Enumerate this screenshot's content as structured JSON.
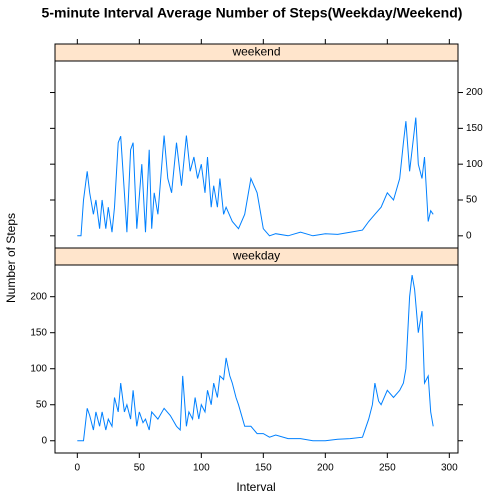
{
  "chart_data": {
    "type": "line",
    "title": "5-minute Interval Average Number of Steps(Weekday/Weekend)",
    "x_label": "Interval",
    "y_label": "Number of Steps",
    "xlim": [
      -18,
      307
    ],
    "xticks": [
      0,
      50,
      100,
      150,
      200,
      250,
      300
    ],
    "ylim": [
      -17,
      244
    ],
    "yticks": [
      0,
      50,
      100,
      150,
      200
    ],
    "series": [
      {
        "name": "weekend",
        "color": "#0080ff",
        "x": [
          0,
          3,
          5,
          8,
          10,
          13,
          15,
          18,
          20,
          23,
          25,
          28,
          30,
          33,
          35,
          38,
          40,
          43,
          45,
          48,
          52,
          55,
          58,
          60,
          62,
          65,
          70,
          73,
          76,
          80,
          84,
          88,
          91,
          94,
          97,
          100,
          103,
          105,
          108,
          110,
          113,
          115,
          118,
          120,
          125,
          130,
          135,
          140,
          145,
          150,
          155,
          160,
          170,
          180,
          190,
          200,
          210,
          220,
          230,
          235,
          240,
          245,
          250,
          255,
          260,
          263,
          265,
          268,
          270,
          273,
          275,
          278,
          280,
          283,
          285,
          287
        ],
        "values": [
          0,
          0,
          50,
          90,
          60,
          30,
          50,
          10,
          50,
          10,
          40,
          5,
          40,
          130,
          139,
          60,
          5,
          120,
          130,
          10,
          100,
          5,
          120,
          10,
          60,
          30,
          140,
          80,
          60,
          130,
          70,
          140,
          90,
          110,
          80,
          100,
          60,
          110,
          40,
          70,
          40,
          80,
          30,
          40,
          20,
          10,
          30,
          80,
          60,
          10,
          0,
          3,
          0,
          5,
          0,
          3,
          2,
          5,
          8,
          20,
          30,
          40,
          60,
          50,
          80,
          130,
          160,
          90,
          120,
          165,
          100,
          80,
          110,
          20,
          35,
          30
        ]
      },
      {
        "name": "weekday",
        "color": "#0080ff",
        "x": [
          0,
          5,
          8,
          10,
          13,
          15,
          18,
          20,
          23,
          25,
          28,
          30,
          33,
          35,
          38,
          40,
          43,
          45,
          48,
          50,
          53,
          55,
          58,
          60,
          65,
          70,
          75,
          80,
          83,
          85,
          88,
          90,
          93,
          95,
          98,
          100,
          103,
          105,
          108,
          110,
          113,
          115,
          118,
          120,
          123,
          125,
          128,
          130,
          135,
          140,
          145,
          150,
          155,
          160,
          170,
          180,
          190,
          200,
          210,
          220,
          230,
          233,
          235,
          238,
          240,
          243,
          245,
          250,
          255,
          260,
          263,
          265,
          268,
          270,
          272,
          275,
          278,
          280,
          283,
          285,
          287
        ],
        "values": [
          0,
          0,
          45,
          35,
          15,
          40,
          20,
          40,
          15,
          30,
          20,
          60,
          40,
          80,
          40,
          50,
          30,
          70,
          20,
          40,
          25,
          30,
          15,
          40,
          30,
          45,
          35,
          20,
          15,
          90,
          20,
          40,
          30,
          60,
          30,
          50,
          40,
          70,
          50,
          80,
          60,
          90,
          85,
          115,
          90,
          80,
          60,
          50,
          20,
          20,
          10,
          10,
          5,
          8,
          3,
          3,
          0,
          0,
          2,
          3,
          5,
          20,
          30,
          50,
          80,
          55,
          50,
          70,
          60,
          70,
          80,
          100,
          200,
          230,
          210,
          150,
          180,
          80,
          90,
          40,
          20
        ]
      }
    ]
  }
}
